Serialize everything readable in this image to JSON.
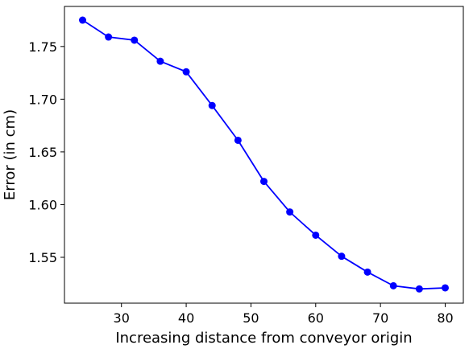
{
  "chart_data": {
    "type": "line",
    "title": "",
    "xlabel": "Increasing distance from conveyor origin",
    "ylabel": "Error (in cm)",
    "xlim": [
      21.2,
      82.8
    ],
    "ylim": [
      1.5065,
      1.788
    ],
    "xticks": [
      30,
      40,
      50,
      60,
      70,
      80
    ],
    "xtick_labels": [
      "30",
      "40",
      "50",
      "60",
      "70",
      "80"
    ],
    "yticks": [
      1.55,
      1.6,
      1.65,
      1.7,
      1.75
    ],
    "ytick_labels": [
      "1.55",
      "1.60",
      "1.65",
      "1.70",
      "1.75"
    ],
    "grid": false,
    "series": [
      {
        "color": "#0000ff",
        "marker": "circle",
        "x": [
          24,
          28,
          32,
          36,
          40,
          44,
          48,
          52,
          56,
          60,
          64,
          68,
          72,
          76,
          80
        ],
        "y": [
          1.775,
          1.759,
          1.756,
          1.736,
          1.726,
          1.694,
          1.661,
          1.622,
          1.593,
          1.571,
          1.551,
          1.536,
          1.523,
          1.52,
          1.521
        ]
      }
    ]
  }
}
